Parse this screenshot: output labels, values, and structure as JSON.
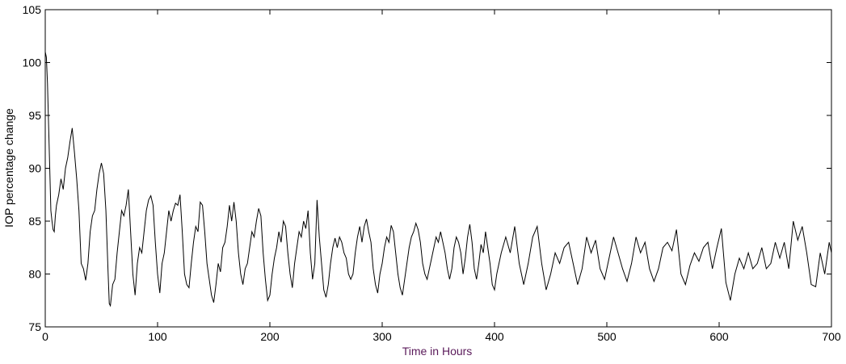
{
  "chart_data": {
    "type": "line",
    "xlabel": "Time in Hours",
    "ylabel": "IOP percentage change",
    "color": "#000000",
    "xlabel_color": "#5a1a5a",
    "xlim": [
      0,
      700
    ],
    "xticks": [
      0,
      100,
      200,
      300,
      400,
      500,
      600,
      700
    ],
    "ylim": [
      75,
      105
    ],
    "yticks": [
      75,
      80,
      85,
      90,
      95,
      100,
      105
    ],
    "grid": false,
    "x": [
      0,
      1,
      2,
      3,
      4,
      5,
      6,
      7,
      8,
      9,
      10,
      12,
      14,
      16,
      18,
      20,
      22,
      24,
      26,
      28,
      30,
      32,
      34,
      36,
      38,
      40,
      42,
      44,
      46,
      48,
      50,
      52,
      54,
      56,
      57,
      58,
      60,
      62,
      64,
      66,
      68,
      70,
      72,
      74,
      76,
      78,
      80,
      82,
      84,
      86,
      88,
      90,
      92,
      94,
      96,
      98,
      100,
      102,
      104,
      106,
      108,
      110,
      112,
      114,
      116,
      118,
      120,
      122,
      124,
      126,
      128,
      130,
      132,
      134,
      136,
      138,
      140,
      142,
      144,
      146,
      148,
      150,
      152,
      154,
      156,
      158,
      160,
      162,
      164,
      166,
      168,
      170,
      172,
      174,
      176,
      178,
      180,
      182,
      184,
      186,
      188,
      190,
      192,
      194,
      196,
      198,
      200,
      202,
      204,
      206,
      208,
      210,
      212,
      214,
      216,
      218,
      220,
      222,
      224,
      226,
      228,
      230,
      232,
      234,
      236,
      238,
      240,
      242,
      244,
      246,
      248,
      250,
      252,
      254,
      256,
      258,
      260,
      262,
      264,
      266,
      268,
      270,
      272,
      274,
      276,
      278,
      280,
      282,
      284,
      286,
      288,
      290,
      292,
      294,
      296,
      298,
      300,
      302,
      304,
      306,
      308,
      310,
      312,
      314,
      316,
      318,
      320,
      322,
      324,
      326,
      328,
      330,
      332,
      334,
      336,
      338,
      340,
      342,
      344,
      346,
      348,
      350,
      352,
      354,
      356,
      358,
      360,
      362,
      364,
      366,
      368,
      370,
      372,
      374,
      376,
      378,
      380,
      382,
      384,
      386,
      388,
      390,
      392,
      394,
      396,
      398,
      400,
      402,
      406,
      410,
      414,
      418,
      422,
      426,
      430,
      434,
      438,
      442,
      446,
      450,
      454,
      458,
      462,
      466,
      470,
      474,
      478,
      482,
      486,
      490,
      494,
      498,
      502,
      506,
      510,
      514,
      518,
      522,
      526,
      530,
      534,
      538,
      542,
      546,
      550,
      554,
      558,
      562,
      566,
      570,
      574,
      578,
      582,
      586,
      590,
      594,
      598,
      602,
      606,
      610,
      614,
      618,
      622,
      626,
      630,
      634,
      638,
      642,
      646,
      650,
      654,
      658,
      662,
      666,
      670,
      674,
      678,
      682,
      686,
      690,
      694,
      698,
      700
    ],
    "values": [
      101,
      100.5,
      98,
      94,
      90,
      86,
      85,
      84.2,
      84,
      85.5,
      86.5,
      87.5,
      89,
      88,
      90,
      91,
      92.5,
      93.8,
      91.5,
      89,
      86,
      81,
      80.5,
      79.4,
      81,
      84,
      85.5,
      86,
      88,
      89.5,
      90.5,
      89.5,
      86,
      80,
      77.2,
      77,
      79,
      79.5,
      82,
      84,
      86,
      85.5,
      86.5,
      88,
      84,
      80,
      78,
      81,
      82.5,
      82,
      84,
      86,
      87,
      87.4,
      86.5,
      83,
      80,
      78.2,
      81,
      82,
      84,
      86,
      85,
      86,
      86.7,
      86.5,
      87.5,
      84,
      80,
      79,
      78.7,
      81,
      83,
      84.5,
      84,
      86.8,
      86.5,
      84,
      81,
      79.5,
      78,
      77.3,
      79,
      81,
      80.2,
      82.5,
      83,
      84.5,
      86.5,
      85,
      86.8,
      85,
      82,
      80,
      79,
      80.5,
      81,
      82.5,
      84,
      83.5,
      85,
      86.2,
      85.5,
      82,
      79.5,
      77.5,
      78,
      80,
      81.5,
      82.5,
      84,
      83,
      85,
      84.5,
      82,
      80,
      78.7,
      81,
      82.5,
      84,
      83.5,
      85,
      84.3,
      86,
      82,
      79.5,
      81,
      87,
      83.5,
      81,
      78.5,
      77.8,
      79,
      81,
      82.5,
      83.4,
      82.5,
      83.5,
      83,
      82,
      81.5,
      80,
      79.5,
      80,
      82,
      83.5,
      84.5,
      83,
      84.5,
      85.2,
      84,
      83,
      80.5,
      79,
      78.2,
      80,
      81,
      82.5,
      83.5,
      83,
      84.6,
      84,
      82,
      80,
      78.7,
      78,
      79.5,
      81,
      82.5,
      83.5,
      84,
      84.8,
      84.2,
      83,
      81,
      80,
      79.5,
      80.5,
      81.5,
      82.5,
      83.5,
      83,
      84,
      83,
      82,
      80.5,
      79.5,
      80.5,
      82.5,
      83.5,
      83,
      82,
      80,
      81.5,
      83.5,
      84.7,
      83,
      80.5,
      79.5,
      81,
      82.8,
      82,
      84,
      82.5,
      81,
      79,
      78.5,
      80,
      82,
      83.5,
      82,
      84.5,
      81,
      79,
      81,
      83.5,
      84.5,
      81,
      78.5,
      80,
      82,
      81,
      82.5,
      83,
      81,
      79,
      80.5,
      83.5,
      82,
      83.2,
      80.5,
      79.5,
      81.5,
      83.5,
      82,
      80.5,
      79.3,
      81,
      83.5,
      82,
      83,
      80.5,
      79.3,
      80.5,
      82.5,
      83,
      82.2,
      84.2,
      80,
      79,
      80.8,
      82,
      81.2,
      82.5,
      83,
      80.5,
      82.5,
      84.3,
      79.2,
      77.5,
      80,
      81.5,
      80.5,
      82,
      80.5,
      81,
      82.5,
      80.5,
      81,
      83,
      81.5,
      83,
      80.5,
      85,
      83.2,
      84.5,
      82,
      79,
      78.8,
      82,
      80,
      83,
      82
    ]
  }
}
